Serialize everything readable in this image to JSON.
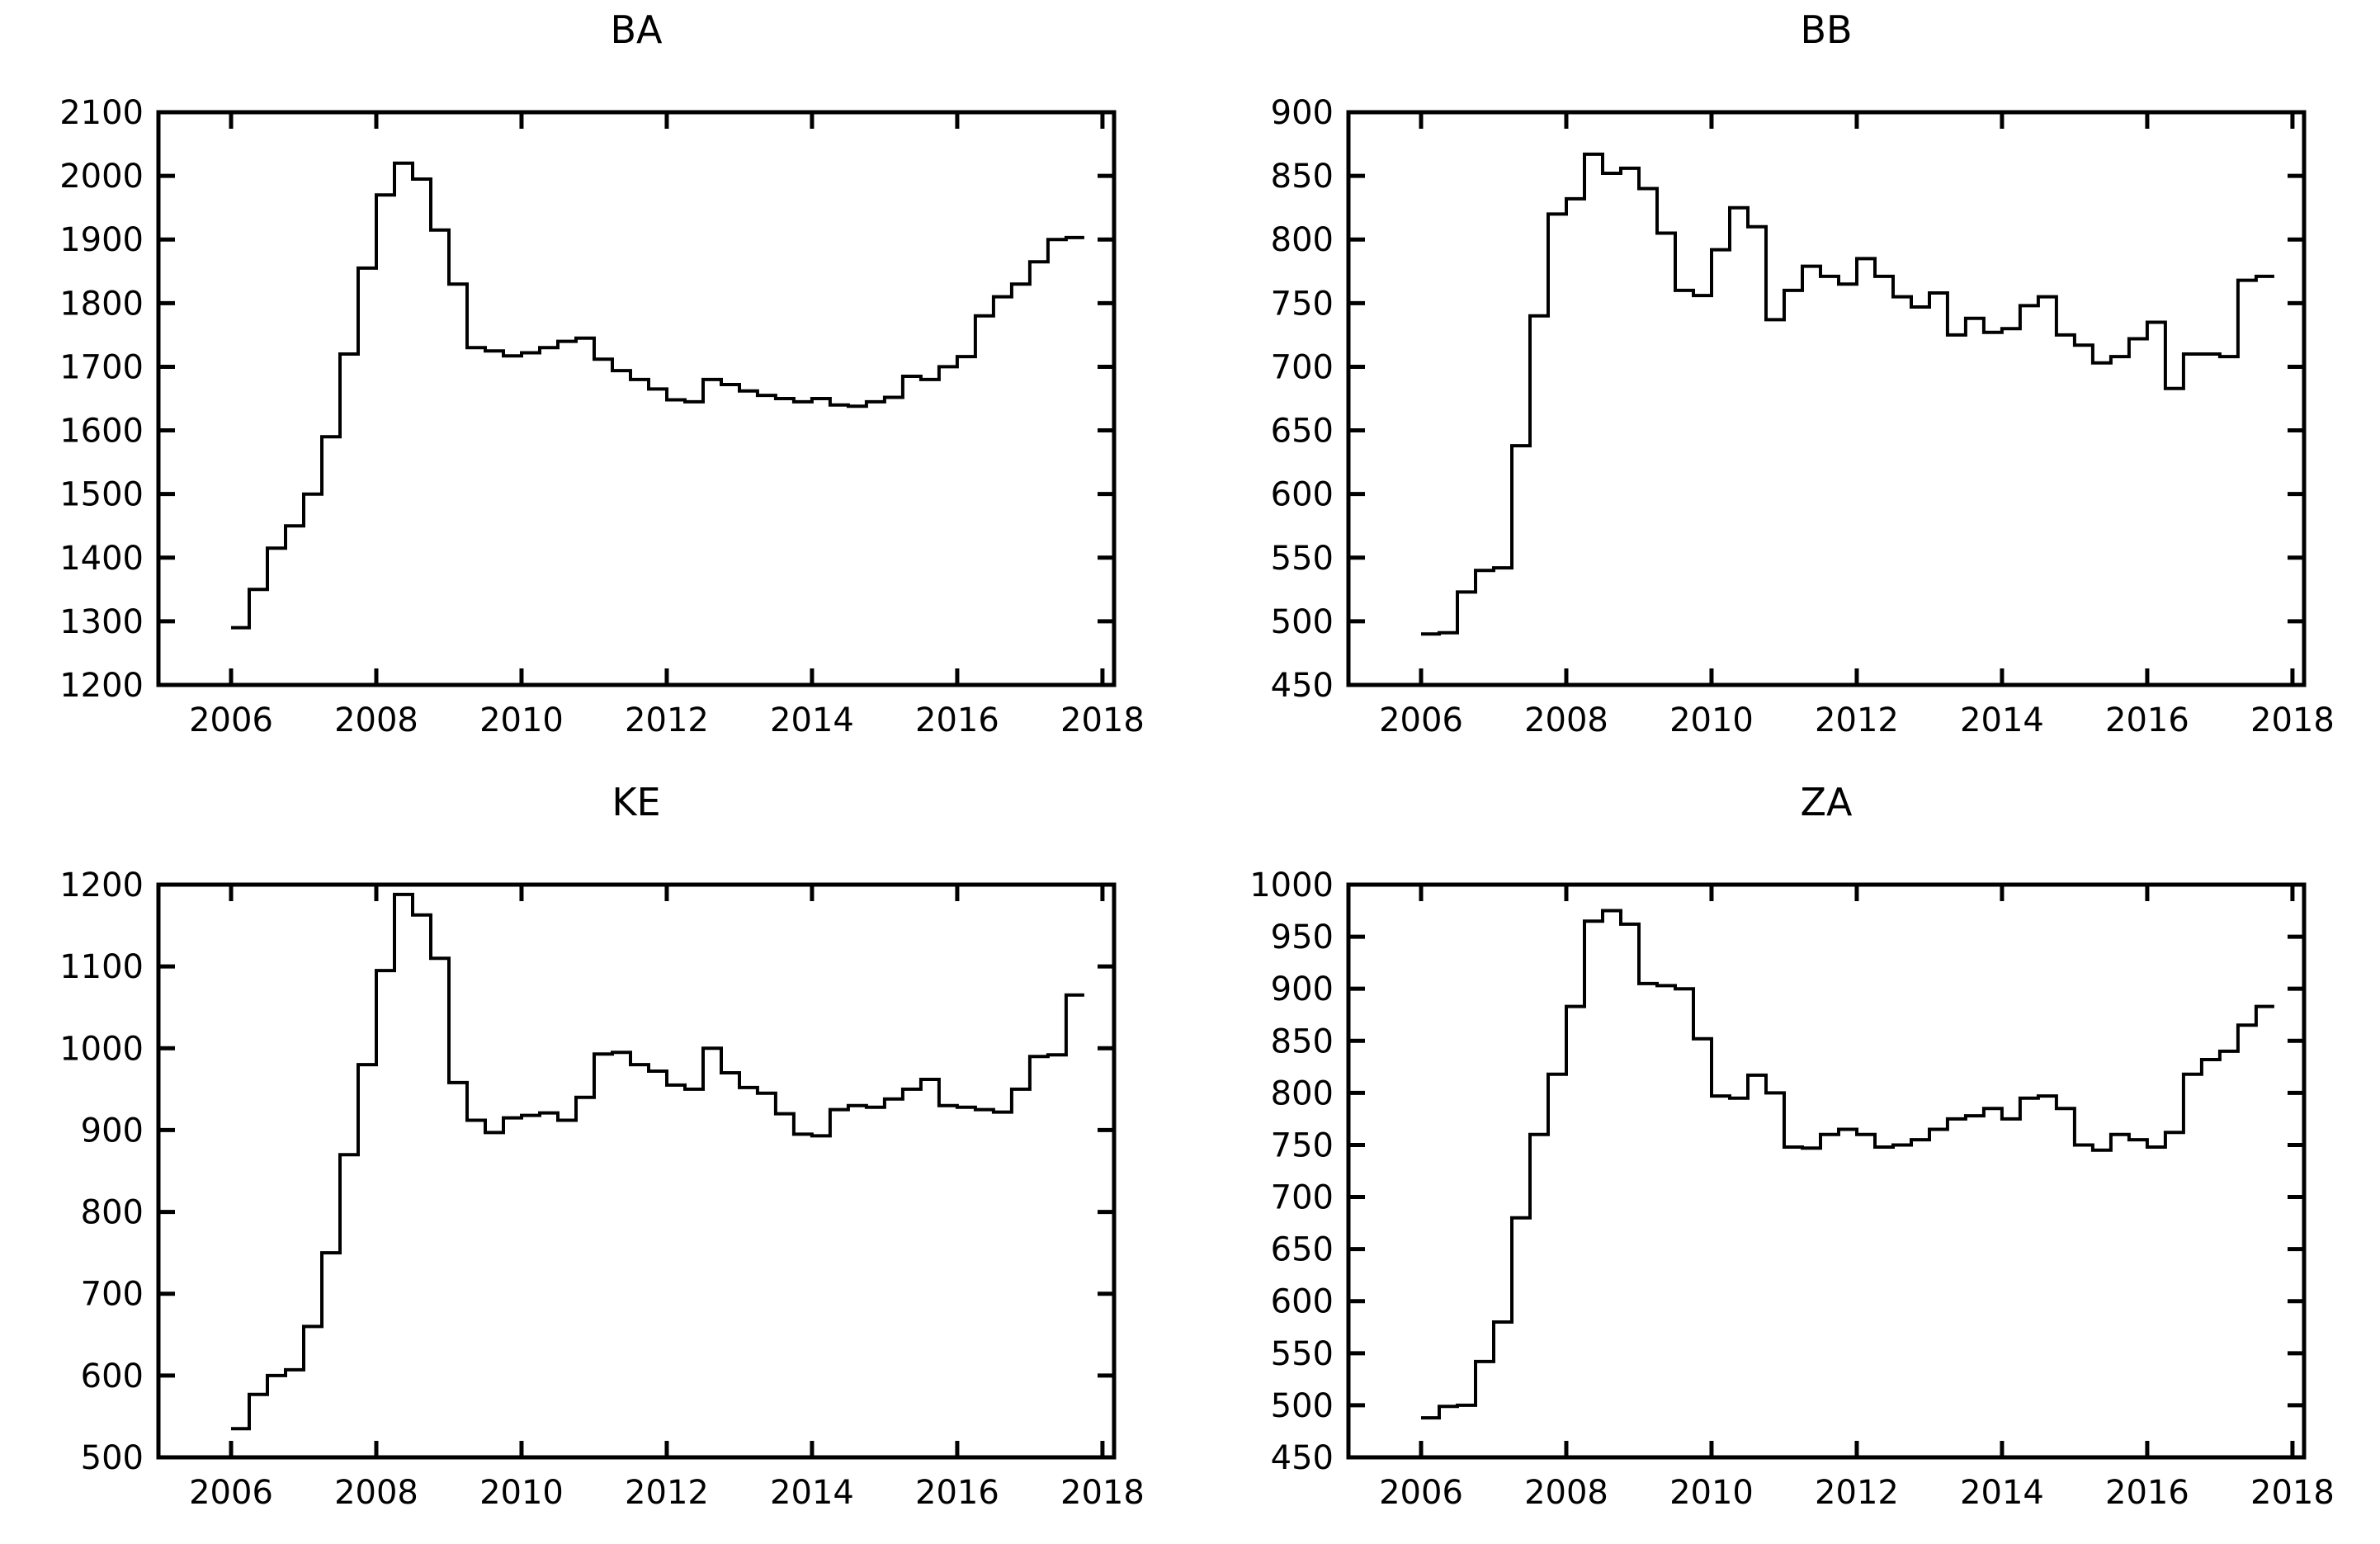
{
  "page": {
    "background": "#ffffff",
    "foreground": "#000000",
    "description_titles": [
      "BA",
      "BB",
      "KE",
      "ZA"
    ]
  },
  "chart_data": [
    {
      "type": "line",
      "line_style": "step-after",
      "title": "BA",
      "color": "#000000",
      "grid": false,
      "legend": null,
      "xlim": [
        2005.0,
        2018.16
      ],
      "x_ticks": [
        2006,
        2008,
        2010,
        2012,
        2014,
        2016,
        2018
      ],
      "x_start": 2006.0,
      "x_step": 0.25,
      "x_unit": "year (quarterly steps)",
      "ylim": [
        1200,
        2100
      ],
      "ytick_step": 100,
      "values": [
        1290,
        1350,
        1415,
        1450,
        1500,
        1590,
        1720,
        1855,
        1970,
        2020,
        1995,
        1915,
        1830,
        1730,
        1725,
        1717,
        1722,
        1730,
        1740,
        1745,
        1712,
        1694,
        1680,
        1665,
        1648,
        1645,
        1680,
        1672,
        1662,
        1655,
        1650,
        1645,
        1650,
        1640,
        1638,
        1645,
        1652,
        1685,
        1680,
        1700,
        1716,
        1780,
        1810,
        1830,
        1865,
        1900,
        1903
      ]
    },
    {
      "type": "line",
      "line_style": "step-after",
      "title": "BB",
      "color": "#000000",
      "grid": false,
      "legend": null,
      "xlim": [
        2005.0,
        2018.16
      ],
      "x_ticks": [
        2006,
        2008,
        2010,
        2012,
        2014,
        2016,
        2018
      ],
      "x_start": 2006.0,
      "x_step": 0.25,
      "x_unit": "year (quarterly steps)",
      "ylim": [
        450,
        900
      ],
      "ytick_step": 50,
      "values": [
        490,
        491,
        523,
        540,
        542,
        638,
        740,
        820,
        832,
        867,
        852,
        856,
        840,
        805,
        760,
        756,
        792,
        825,
        810,
        737,
        760,
        779,
        771,
        765,
        785,
        771,
        755,
        747,
        758,
        725,
        738,
        727,
        730,
        748,
        755,
        725,
        717,
        703,
        708,
        722,
        735,
        683,
        710,
        710,
        708,
        768,
        771
      ]
    },
    {
      "type": "line",
      "line_style": "step-after",
      "title": "KE",
      "color": "#000000",
      "grid": false,
      "legend": null,
      "xlim": [
        2005.0,
        2018.16
      ],
      "x_ticks": [
        2006,
        2008,
        2010,
        2012,
        2014,
        2016,
        2018
      ],
      "x_start": 2006.0,
      "x_step": 0.25,
      "x_unit": "year (quarterly steps)",
      "ylim": [
        500,
        1200
      ],
      "ytick_step": 100,
      "values": [
        535,
        577,
        600,
        607,
        660,
        750,
        870,
        980,
        1095,
        1188,
        1163,
        1110,
        958,
        912,
        897,
        915,
        918,
        921,
        912,
        940,
        993,
        995,
        980,
        972,
        955,
        950,
        1000,
        970,
        952,
        945,
        920,
        895,
        893,
        925,
        930,
        928,
        938,
        950,
        962,
        930,
        928,
        925,
        922,
        950,
        990,
        992,
        1065
      ]
    },
    {
      "type": "line",
      "line_style": "step-after",
      "title": "ZA",
      "color": "#000000",
      "grid": false,
      "legend": null,
      "xlim": [
        2005.0,
        2018.16
      ],
      "x_ticks": [
        2006,
        2008,
        2010,
        2012,
        2014,
        2016,
        2018
      ],
      "x_start": 2006.0,
      "x_step": 0.25,
      "x_unit": "year (quarterly steps)",
      "ylim": [
        450,
        1000
      ],
      "ytick_step": 50,
      "values": [
        488,
        499,
        500,
        542,
        580,
        680,
        760,
        818,
        883,
        965,
        975,
        962,
        905,
        903,
        900,
        852,
        797,
        795,
        817,
        800,
        748,
        747,
        760,
        765,
        760,
        748,
        750,
        755,
        765,
        775,
        778,
        785,
        775,
        795,
        797,
        785,
        750,
        745,
        760,
        755,
        748,
        762,
        818,
        832,
        840,
        865,
        883
      ]
    }
  ]
}
